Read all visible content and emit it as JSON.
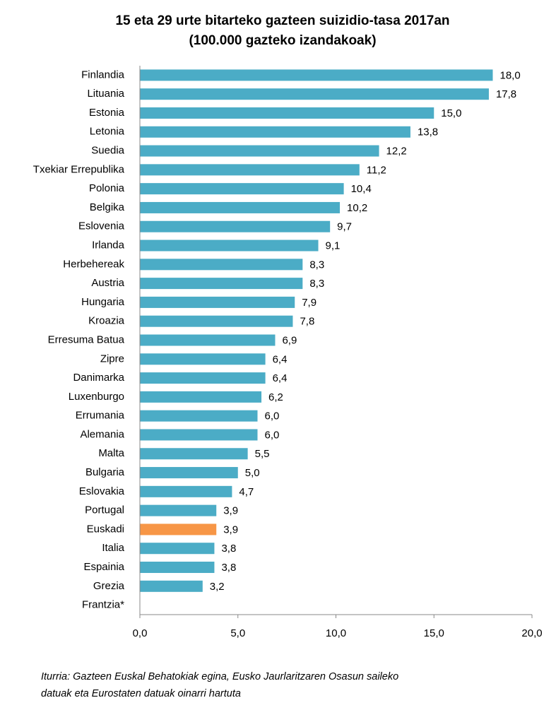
{
  "chart_data": {
    "type": "hbar",
    "title": "15 eta 29 urte bitarteko gazteen suizidio-tasa 2017an",
    "subtitle": "(100.000 gazteko izandakoak)",
    "categories": [
      "Finlandia",
      "Lituania",
      "Estonia",
      "Letonia",
      "Suedia",
      "Txekiar Errepublika",
      "Polonia",
      "Belgika",
      "Eslovenia",
      "Irlanda",
      "Herbehereak",
      "Austria",
      "Hungaria",
      "Kroazia",
      "Erresuma Batua",
      "Zipre",
      "Danimarka",
      "Luxenburgo",
      "Errumania",
      "Alemania",
      "Malta",
      "Bulgaria",
      "Eslovakia",
      "Portugal",
      "Euskadi",
      "Italia",
      "Espainia",
      "Grezia",
      "Frantzia*"
    ],
    "values": [
      18.0,
      17.8,
      15.0,
      13.8,
      12.2,
      11.2,
      10.4,
      10.2,
      9.7,
      9.1,
      8.3,
      8.3,
      7.9,
      7.8,
      6.9,
      6.4,
      6.4,
      6.2,
      6.0,
      6.0,
      5.5,
      5.0,
      4.7,
      3.9,
      3.9,
      3.8,
      3.8,
      3.2,
      null
    ],
    "value_labels": [
      "18,0",
      "17,8",
      "15,0",
      "13,8",
      "12,2",
      "11,2",
      "10,4",
      "10,2",
      "9,7",
      "9,1",
      "8,3",
      "8,3",
      "7,9",
      "7,8",
      "6,9",
      "6,4",
      "6,4",
      "6,2",
      "6,0",
      "6,0",
      "5,5",
      "5,0",
      "4,7",
      "3,9",
      "3,9",
      "3,8",
      "3,8",
      "3,2",
      null
    ],
    "colors": [
      "#4bacc6",
      "#4bacc6",
      "#4bacc6",
      "#4bacc6",
      "#4bacc6",
      "#4bacc6",
      "#4bacc6",
      "#4bacc6",
      "#4bacc6",
      "#4bacc6",
      "#4bacc6",
      "#4bacc6",
      "#4bacc6",
      "#4bacc6",
      "#4bacc6",
      "#4bacc6",
      "#4bacc6",
      "#4bacc6",
      "#4bacc6",
      "#4bacc6",
      "#4bacc6",
      "#4bacc6",
      "#4bacc6",
      "#4bacc6",
      "#f79646",
      "#4bacc6",
      "#4bacc6",
      "#4bacc6",
      "#4bacc6"
    ],
    "xlim": [
      0,
      20
    ],
    "xticks": [
      {
        "value": 0,
        "label": "0,0"
      },
      {
        "value": 5,
        "label": "5,0"
      },
      {
        "value": 10,
        "label": "10,0"
      },
      {
        "value": 15,
        "label": "15,0"
      },
      {
        "value": 20,
        "label": "20,0"
      }
    ],
    "note": [
      "Iturria: Gazteen Euskal Behatokiak egina, Eusko Jaurlaritzaren Osasun saileko",
      "datuak eta Eurostaten datuak oinarri hartuta"
    ]
  }
}
